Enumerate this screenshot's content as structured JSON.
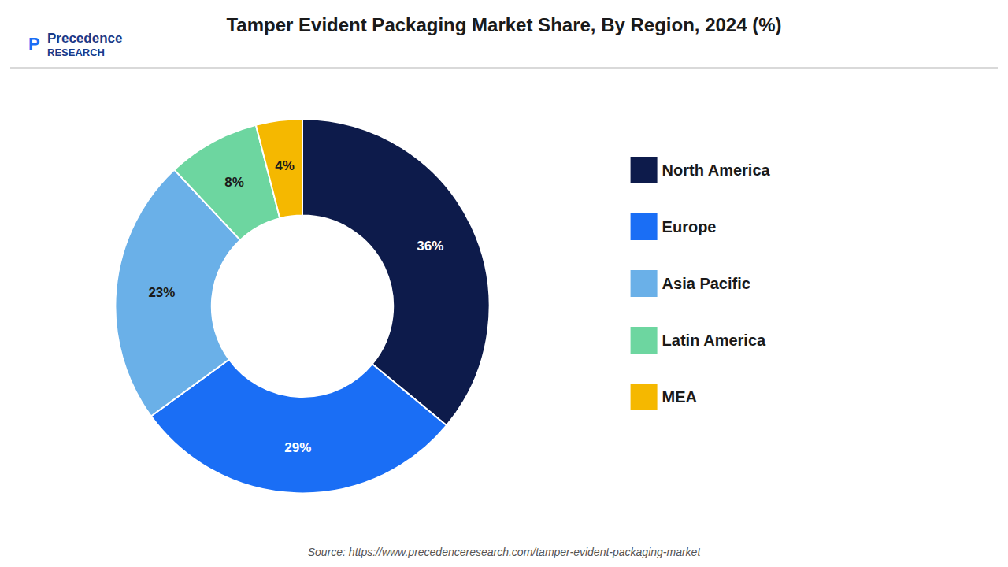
{
  "chart_data": {
    "type": "donut",
    "title": "Tamper Evident Packaging Market Share, By Region, 2024 (%)",
    "categories": [
      "North America",
      "Europe",
      "Asia Pacific",
      "Latin America",
      "MEA"
    ],
    "values": [
      36,
      29,
      23,
      8,
      4
    ],
    "value_labels": [
      "36%",
      "29%",
      "23%",
      "8%",
      "4%"
    ],
    "colors": [
      "#0d1b4b",
      "#1a6ef5",
      "#6ab0e8",
      "#6dd6a0",
      "#f5b800"
    ],
    "data_labels": true,
    "legend": "right",
    "annotations": [
      "P",
      "Precedence",
      "RESEARCH",
      "Source: https://www.precedenceresearch.com/tamper-evident-packaging-market"
    ]
  }
}
